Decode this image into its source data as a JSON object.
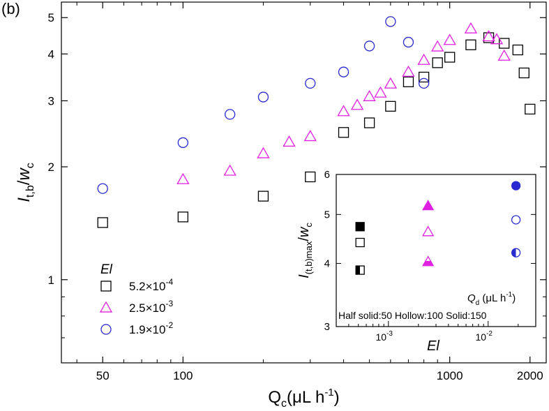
{
  "panel_label": "(b)",
  "colors": {
    "black": "#000000",
    "magenta": "#e020e0",
    "blue": "#2a2ad0"
  },
  "chart_data": [
    {
      "type": "scatter",
      "xscale": "log",
      "yscale": "log",
      "xlabel": "Q_c(μL h^-1)",
      "ylabel": "I_t,b/w_c",
      "xlim": [
        35,
        2300
      ],
      "ylim": [
        0.6,
        5.5
      ],
      "xticks": [
        50,
        100,
        1000,
        2000
      ],
      "xtick_labels": [
        "50",
        "100",
        "1000",
        "2000"
      ],
      "yticks": [
        1,
        2,
        3,
        4,
        5
      ],
      "ytick_labels": [
        "1",
        "2",
        "3",
        "4",
        "5"
      ],
      "legend_title": "El",
      "legend_position": "bottom-left",
      "grid": false,
      "series": [
        {
          "name": "5.2×10^-4",
          "marker": "square",
          "color": "#000000",
          "x": [
            50,
            100,
            200,
            300,
            400,
            500,
            600,
            700,
            800,
            900,
            1000,
            1200,
            1400,
            1600,
            1800,
            1900,
            2000
          ],
          "y": [
            1.42,
            1.47,
            1.67,
            1.88,
            2.47,
            2.62,
            2.9,
            3.37,
            3.47,
            3.79,
            3.92,
            4.23,
            4.42,
            4.27,
            4.1,
            3.56,
            2.85
          ]
        },
        {
          "name": "2.5×10^-3",
          "marker": "triangle",
          "color": "#e020e0",
          "x": [
            100,
            150,
            200,
            250,
            300,
            400,
            450,
            500,
            550,
            600,
            700,
            800,
            900,
            1000,
            1200,
            1400,
            1500,
            1600
          ],
          "y": [
            1.85,
            1.95,
            2.17,
            2.33,
            2.41,
            2.81,
            2.92,
            3.08,
            3.15,
            3.33,
            3.58,
            3.85,
            4.18,
            4.35,
            4.67,
            4.45,
            4.37,
            3.95
          ]
        },
        {
          "name": "1.9×10^-2",
          "marker": "circle",
          "color": "#2a2ad0",
          "x": [
            50,
            100,
            150,
            200,
            300,
            400,
            500,
            600,
            700,
            800
          ],
          "y": [
            1.75,
            2.32,
            2.76,
            3.07,
            3.34,
            3.58,
            4.2,
            4.88,
            4.3,
            3.34
          ]
        }
      ]
    },
    {
      "type": "scatter",
      "xscale": "log",
      "yscale": "log",
      "xlabel": "El",
      "ylabel": "I_(t,b)max/w_c",
      "xlim": [
        0.0003,
        0.03
      ],
      "ylim": [
        3,
        6
      ],
      "xtick_labels": [
        "10^-3",
        "10^-2"
      ],
      "ytick_labels": [
        "3",
        "4",
        "5",
        "6"
      ],
      "legend_title": "Q_d (μL h^-1)",
      "legend_entries": [
        "Half solid:50",
        "Hollow:100",
        "Solid:150"
      ],
      "series": [
        {
          "name": "Half solid:50",
          "fill": "half",
          "x": [
            0.00052,
            0.0025,
            0.019
          ],
          "y": [
            3.88,
            4.03,
            4.2
          ]
        },
        {
          "name": "Hollow:100",
          "fill": "none",
          "x": [
            0.00052,
            0.0025,
            0.019
          ],
          "y": [
            4.4,
            4.62,
            4.88
          ]
        },
        {
          "name": "Solid:150",
          "fill": "solid",
          "x": [
            0.00052,
            0.0025,
            0.019
          ],
          "y": [
            4.73,
            5.2,
            5.7
          ]
        }
      ]
    }
  ]
}
